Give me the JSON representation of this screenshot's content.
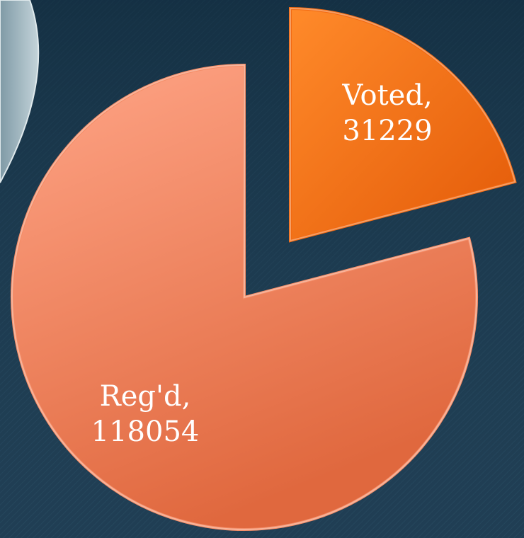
{
  "chart_data": {
    "type": "pie",
    "categories": [
      "Voted",
      "Reg'd"
    ],
    "values": [
      31229,
      118054
    ],
    "value_labels": [
      "Voted, 31229",
      "Reg'd, 118054"
    ],
    "colors": [
      "#f26a12",
      "#f48c66"
    ]
  }
}
